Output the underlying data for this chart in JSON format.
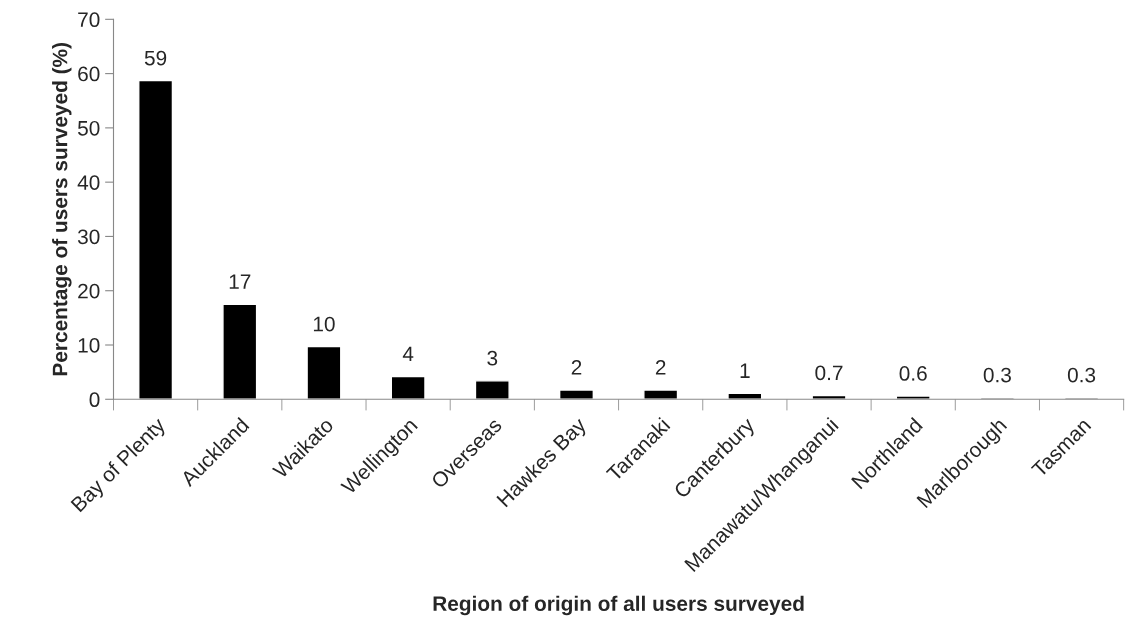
{
  "chart_data": {
    "type": "bar",
    "xlabel": "Region of origin of all users surveyed",
    "ylabel": "Percentage of users surveyed (%)",
    "categories": [
      "Bay of Plenty",
      "Auckland",
      "Waikato",
      "Wellington",
      "Overseas",
      "Hawkes Bay",
      "Taranaki",
      "Canterbury",
      "Manawatu/Whanganui",
      "Northland",
      "Marlborough",
      "Tasman"
    ],
    "values": [
      58.7,
      17.5,
      9.7,
      4.2,
      3.4,
      1.7,
      1.7,
      1.1,
      0.7,
      0.6,
      0.3,
      0.3
    ],
    "value_labels": [
      "59",
      "17",
      "10",
      "4",
      "3",
      "2",
      "2",
      "1",
      "0.7",
      "0.6",
      "0.3",
      "0.3"
    ],
    "color": "#000000",
    "ylim": [
      0,
      70
    ],
    "yticks": [
      0,
      10,
      20,
      30,
      40,
      50,
      60,
      70
    ],
    "grid": false
  }
}
